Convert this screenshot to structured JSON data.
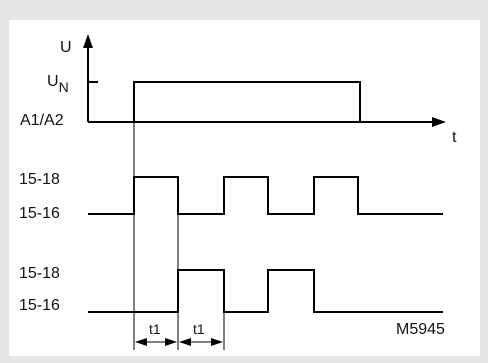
{
  "labels": {
    "voltage_axis": "U",
    "nominal_voltage_main": "U",
    "nominal_voltage_sub": "N",
    "supply": "A1/A2",
    "time_axis": "t",
    "relay1_on": "15-18",
    "relay1_off": "15-16",
    "relay2_on": "15-18",
    "relay2_off": "15-16",
    "t1_first": "t1",
    "t1_second": "t1",
    "drawing_number": "M5945"
  },
  "colors": {
    "background": "#e5e5e5",
    "panel": "#ffffff",
    "ink": "#000000"
  }
}
